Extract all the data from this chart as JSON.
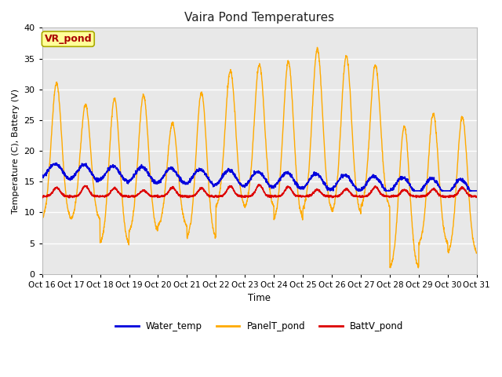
{
  "title": "Vaira Pond Temperatures",
  "xlabel": "Time",
  "ylabel": "Temperature (C), Battery (V)",
  "xlim": [
    0,
    15
  ],
  "ylim": [
    0,
    40
  ],
  "yticks": [
    0,
    5,
    10,
    15,
    20,
    25,
    30,
    35,
    40
  ],
  "xtick_labels": [
    "Oct 16",
    "Oct 17",
    "Oct 18",
    "Oct 19",
    "Oct 20",
    "Oct 21",
    "Oct 22",
    "Oct 23",
    "Oct 24",
    "Oct 25",
    "Oct 26",
    "Oct 27",
    "Oct 28",
    "Oct 29",
    "Oct 30",
    "Oct 31"
  ],
  "fig_bg_color": "#ffffff",
  "plot_bg_color": "#e8e8e8",
  "grid_color": "#ffffff",
  "water_temp_color": "#0000dd",
  "panel_temp_color": "#ffaa00",
  "batt_color": "#dd0000",
  "annotation_text": "VR_pond",
  "annotation_color": "#aa0000",
  "annotation_bg": "#ffff99",
  "annotation_border": "#aaaa00",
  "legend_labels": [
    "Water_temp",
    "PanelT_pond",
    "BattV_pond"
  ],
  "panel_peaks": [
    31,
    27.5,
    28.5,
    29,
    24.5,
    29.5,
    33,
    34,
    34.5,
    36.5,
    35.5,
    34,
    24,
    26,
    25.5
  ],
  "panel_troughs": [
    8.5,
    8.5,
    4.5,
    6.5,
    7.5,
    5.5,
    10.5,
    10.5,
    8.5,
    10,
    9.5,
    10.5,
    0.5,
    4.5,
    3.0
  ]
}
